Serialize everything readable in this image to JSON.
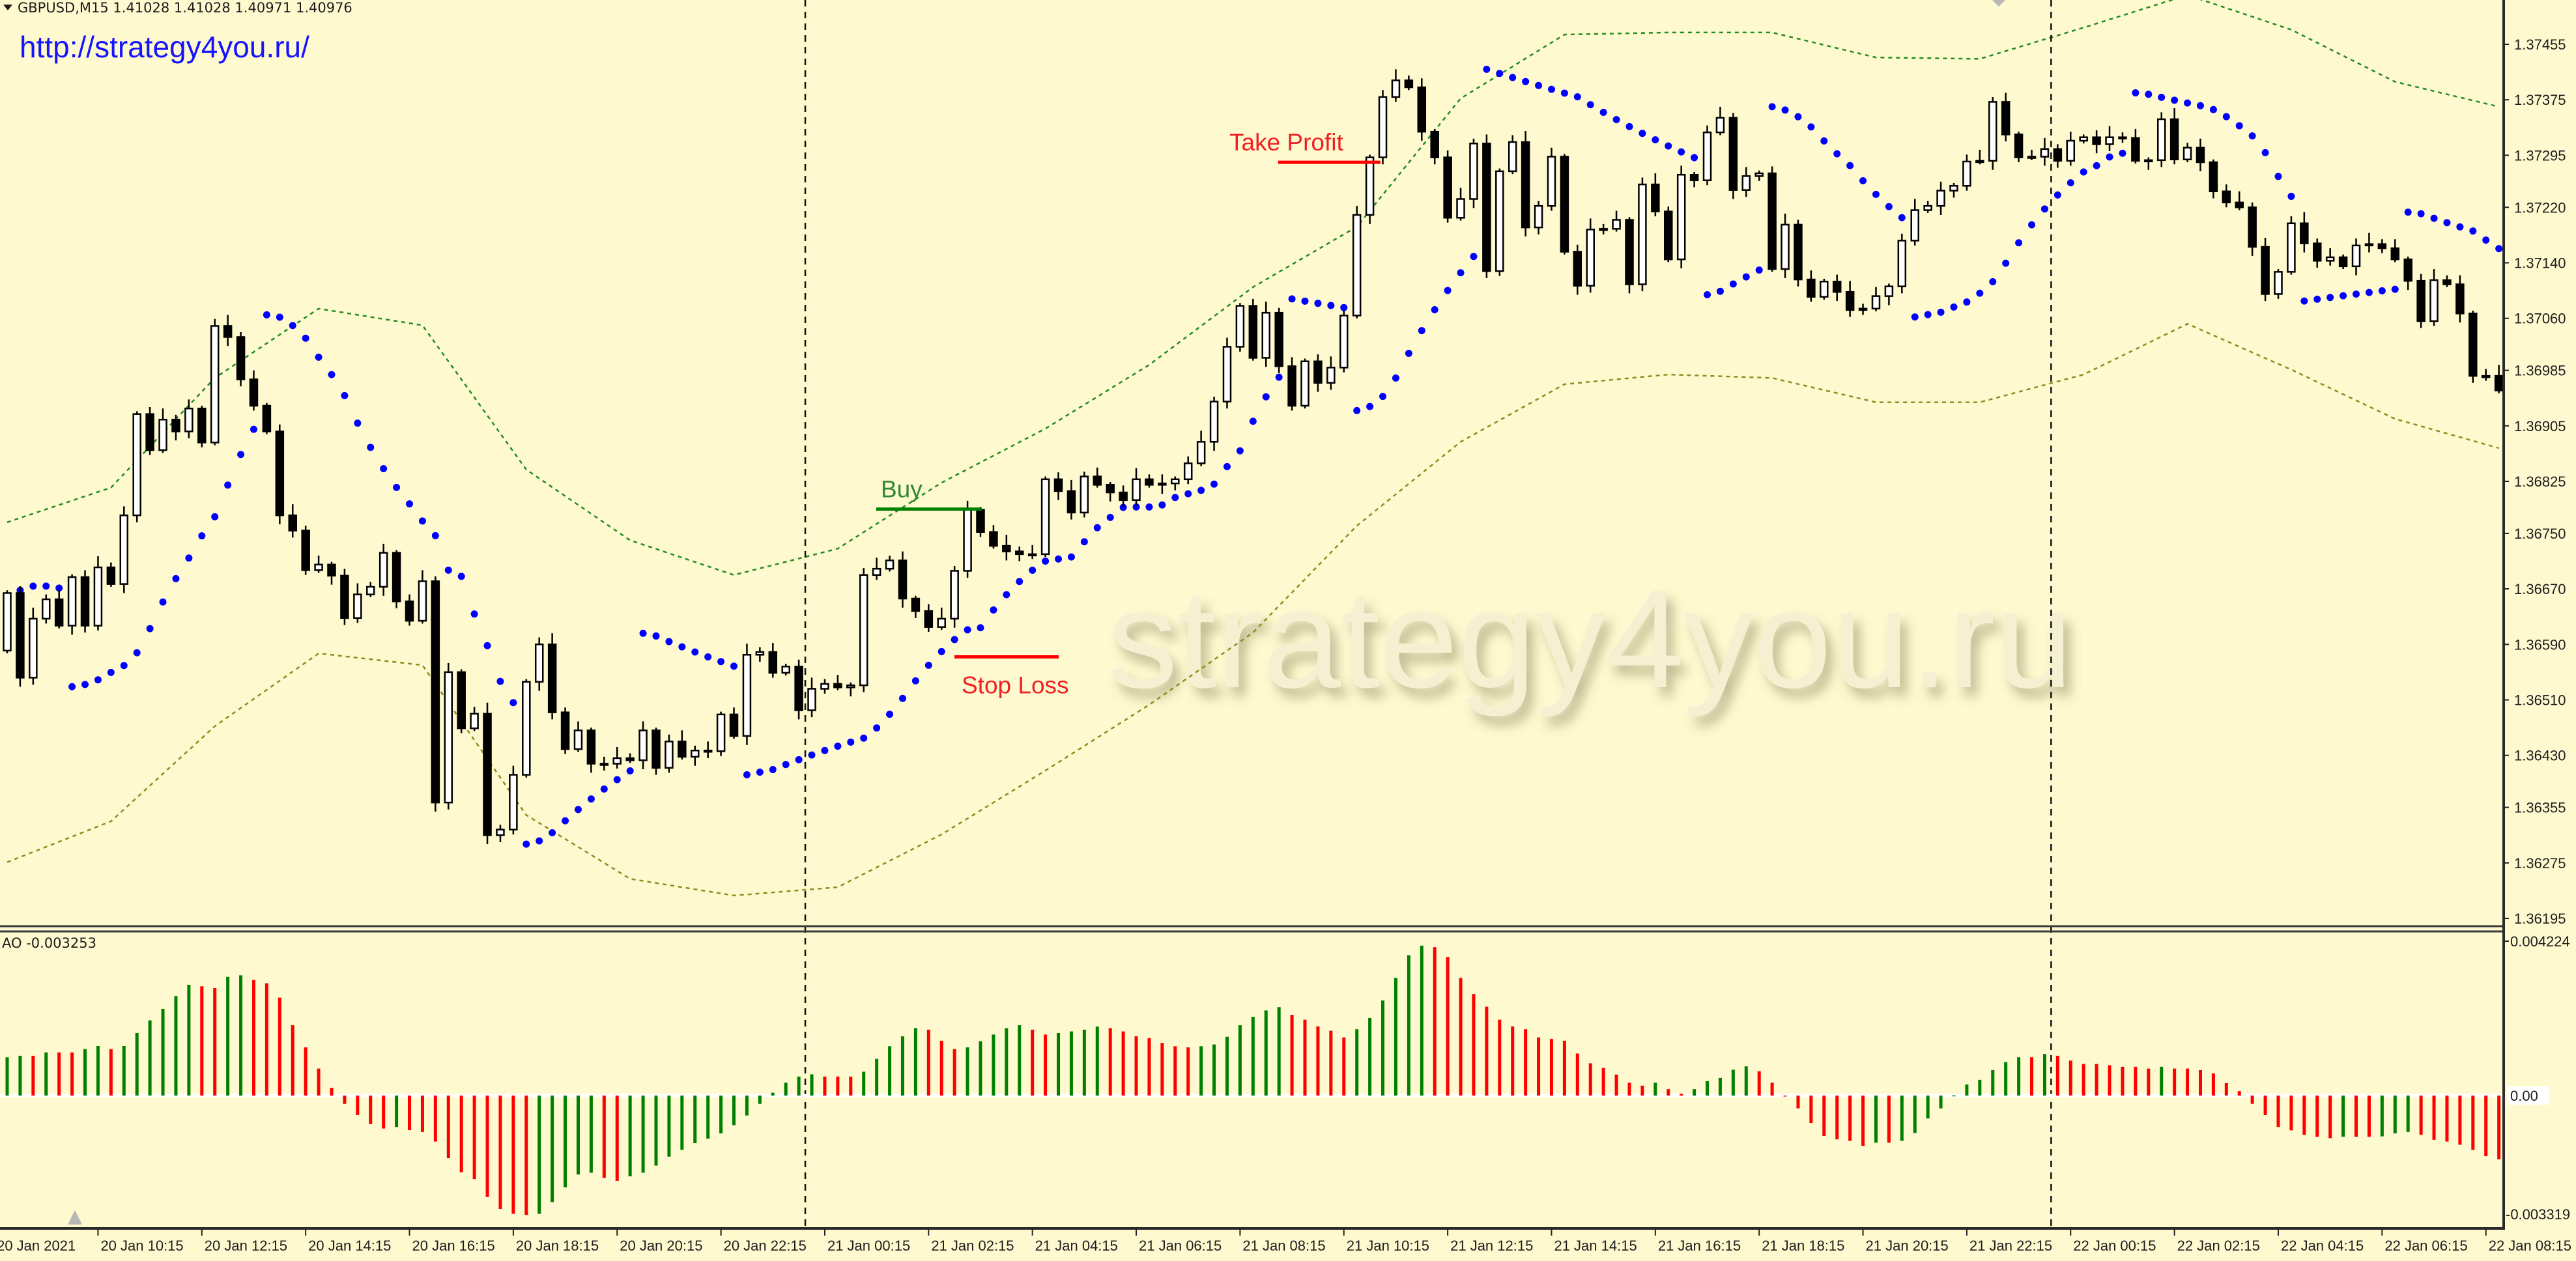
{
  "header": {
    "symbol_info": "GBPUSD,M15  1.41028 1.41028 1.40971 1.40976",
    "url": "http://strategy4you.ru/"
  },
  "watermark": "strategy4you.ru",
  "indicator_label": "AO -0.003253",
  "annotations": {
    "buy": {
      "label": "Buy",
      "price": 1.36785,
      "color": "#008000"
    },
    "stop_loss": {
      "label": "Stop Loss",
      "price": 1.36572,
      "color": "#ff0000"
    },
    "take_profit": {
      "label": "Take Profit",
      "price": 1.37285,
      "color": "#ff0000"
    }
  },
  "colors": {
    "background": "#fff9d0",
    "bull_body": "#ffffff",
    "bear_body": "#000000",
    "sar": "#0000ff",
    "upper_band": "#1e8c1e",
    "lower_band": "#8c8c1e",
    "ao_up": "#008000",
    "ao_down": "#ff0000"
  },
  "chart_data": [
    {
      "type": "candlestick",
      "symbol": "GBPUSD,M15",
      "ylim": [
        1.36195,
        1.37455
      ],
      "y_ticks": [
        "1.37455",
        "1.37375",
        "1.37295",
        "1.37220",
        "1.37140",
        "1.37060",
        "1.36985",
        "1.36905",
        "1.36825",
        "1.36750",
        "1.36670",
        "1.36590",
        "1.36510",
        "1.36430",
        "1.36355",
        "1.36275",
        "1.36195"
      ],
      "x_ticks": [
        "20 Jan 2021",
        "20 Jan 10:15",
        "20 Jan 12:15",
        "20 Jan 14:15",
        "20 Jan 16:15",
        "20 Jan 18:15",
        "20 Jan 20:15",
        "20 Jan 22:15",
        "21 Jan 00:15",
        "21 Jan 02:15",
        "21 Jan 04:15",
        "21 Jan 06:15",
        "21 Jan 08:15",
        "21 Jan 10:15",
        "21 Jan 12:15",
        "21 Jan 14:15",
        "21 Jan 16:15",
        "21 Jan 18:15",
        "21 Jan 20:15",
        "21 Jan 22:15",
        "22 Jan 00:15",
        "22 Jan 02:15",
        "22 Jan 04:15",
        "22 Jan 06:15",
        "22 Jan 08:15"
      ],
      "period_separator_bars": [
        62,
        158
      ],
      "first_open": 1.36581,
      "close": [
        1.36664,
        1.36542,
        1.36627,
        1.36655,
        1.36617,
        1.36687,
        1.36617,
        1.36701,
        1.36677,
        1.36776,
        1.36922,
        1.3687,
        1.36914,
        1.36897,
        1.3693,
        1.36881,
        1.37049,
        1.37033,
        1.36972,
        1.36934,
        1.36897,
        1.36776,
        1.36754,
        1.36697,
        1.36705,
        1.36689,
        1.36628,
        1.36662,
        1.36673,
        1.36722,
        1.36652,
        1.36624,
        1.36681,
        1.36362,
        1.3655,
        1.36469,
        1.3649,
        1.36315,
        1.36323,
        1.36402,
        1.36536,
        1.3659,
        1.36492,
        1.36439,
        1.36466,
        1.36418,
        1.36418,
        1.36426,
        1.36423,
        1.36466,
        1.36412,
        1.3645,
        1.36428,
        1.36437,
        1.36436,
        1.36489,
        1.36458,
        1.36575,
        1.36579,
        1.36549,
        1.36558,
        1.36495,
        1.36526,
        1.36533,
        1.36528,
        1.36531,
        1.3669,
        1.36699,
        1.36711,
        1.36656,
        1.36638,
        1.36615,
        1.36627,
        1.36696,
        1.36784,
        1.36752,
        1.36732,
        1.36724,
        1.3672,
        1.3672,
        1.36828,
        1.36811,
        1.3678,
        1.36832,
        1.3682,
        1.36809,
        1.36798,
        1.36828,
        1.3682,
        1.36822,
        1.36828,
        1.36851,
        1.36882,
        1.3694,
        1.37019,
        1.37078,
        1.37003,
        1.37068,
        1.36991,
        1.36934,
        1.36998,
        1.36967,
        1.36989,
        1.37064,
        1.37209,
        1.37292,
        1.37379,
        1.37403,
        1.37393,
        1.37329,
        1.37292,
        1.37205,
        1.37232,
        1.37312,
        1.37128,
        1.37272,
        1.37314,
        1.37191,
        1.37222,
        1.37293,
        1.37156,
        1.37107,
        1.37188,
        1.37189,
        1.37202,
        1.37109,
        1.37253,
        1.37214,
        1.37145,
        1.37267,
        1.37259,
        1.37328,
        1.37349,
        1.37245,
        1.37265,
        1.37269,
        1.37131,
        1.37195,
        1.37116,
        1.37091,
        1.37113,
        1.37098,
        1.37072,
        1.37074,
        1.37092,
        1.37106,
        1.37172,
        1.37216,
        1.37222,
        1.37244,
        1.37251,
        1.37286,
        1.37287,
        1.37372,
        1.37325,
        1.37292,
        1.37293,
        1.37304,
        1.37287,
        1.37316,
        1.37321,
        1.37311,
        1.37321,
        1.3732,
        1.37287,
        1.37288,
        1.37347,
        1.37289,
        1.37306,
        1.37285,
        1.37243,
        1.37227,
        1.3722,
        1.37163,
        1.37095,
        1.37127,
        1.37197,
        1.37168,
        1.37143,
        1.37148,
        1.37135,
        1.37165,
        1.37167,
        1.37161,
        1.37145,
        1.37114,
        1.37056,
        1.37115,
        1.37109,
        1.37067,
        1.36977,
        1.36977,
        1.36956
      ],
      "upper_band": [
        [
          0,
          1.36766
        ],
        [
          8,
          1.36816
        ],
        [
          16,
          1.36974
        ],
        [
          24,
          1.37074
        ],
        [
          32,
          1.3705
        ],
        [
          40,
          1.36842
        ],
        [
          48,
          1.3674
        ],
        [
          56,
          1.3669
        ],
        [
          64,
          1.36728
        ],
        [
          72,
          1.36823
        ],
        [
          80,
          1.36901
        ],
        [
          88,
          1.36993
        ],
        [
          96,
          1.37105
        ],
        [
          104,
          1.37192
        ],
        [
          112,
          1.37377
        ],
        [
          120,
          1.37469
        ],
        [
          128,
          1.37472
        ],
        [
          136,
          1.37472
        ],
        [
          144,
          1.37436
        ],
        [
          152,
          1.37434
        ],
        [
          160,
          1.37479
        ],
        [
          168,
          1.37526
        ],
        [
          176,
          1.37476
        ],
        [
          184,
          1.37401
        ],
        [
          192,
          1.37365
        ]
      ],
      "lower_band": [
        [
          0,
          1.36276
        ],
        [
          8,
          1.36335
        ],
        [
          16,
          1.36472
        ],
        [
          24,
          1.36577
        ],
        [
          32,
          1.3656
        ],
        [
          40,
          1.36344
        ],
        [
          48,
          1.36252
        ],
        [
          56,
          1.36228
        ],
        [
          64,
          1.3624
        ],
        [
          72,
          1.36316
        ],
        [
          80,
          1.36408
        ],
        [
          88,
          1.36503
        ],
        [
          96,
          1.36607
        ],
        [
          104,
          1.36761
        ],
        [
          112,
          1.36882
        ],
        [
          120,
          1.36965
        ],
        [
          128,
          1.36979
        ],
        [
          136,
          1.36974
        ],
        [
          144,
          1.36939
        ],
        [
          152,
          1.36939
        ],
        [
          160,
          1.36979
        ],
        [
          168,
          1.37052
        ],
        [
          176,
          1.36986
        ],
        [
          184,
          1.36915
        ],
        [
          192,
          1.36873
        ]
      ]
    },
    {
      "type": "bar",
      "indicator": "AO",
      "ylim": [
        -0.003319,
        0.004224
      ],
      "y_ticks": [
        "0.004224",
        "0.00",
        "-0.003319"
      ],
      "values": [
        0.001047,
        0.001089,
        0.001089,
        0.00118,
        0.00118,
        0.00118,
        0.001271,
        0.001355,
        0.001271,
        0.001355,
        0.001712,
        0.002057,
        0.002372,
        0.002723,
        0.003031,
        0.002989,
        0.00294,
        0.003249,
        0.003291,
        0.003164,
        0.003073,
        0.00268,
        0.001924,
        0.001319,
        0.000738,
        0.000212,
        -0.000224,
        -0.000526,
        -0.000768,
        -0.000889,
        -0.000847,
        -0.000932,
        -0.00098,
        -0.00124,
        -0.001688,
        -0.002069,
        -0.002251,
        -0.002735,
        -0.003055,
        -0.003188,
        -0.003219,
        -0.003188,
        -0.002874,
        -0.002474,
        -0.00213,
        -0.002081,
        -0.00222,
        -0.002299,
        -0.002178,
        -0.002081,
        -0.001888,
        -0.001646,
        -0.001464,
        -0.001283,
        -0.001162,
        -0.001022,
        -0.000799,
        -0.000538,
        -0.000224,
        7.9e-05,
        0.000351,
        0.00052,
        0.000581,
        0.00052,
        0.00052,
        0.00052,
        0.000653,
        0.001004,
        0.001349,
        0.001621,
        0.001845,
        0.001803,
        0.0015,
        0.001271,
        0.001319,
        0.001488,
        0.00167,
        0.001845,
        0.001924,
        0.001803,
        0.00167,
        0.001712,
        0.001755,
        0.001803,
        0.001888,
        0.001845,
        0.001755,
        0.001621,
        0.001573,
        0.00144,
        0.001349,
        0.001319,
        0.001349,
        0.001398,
        0.001609,
        0.001924,
        0.002154,
        0.002329,
        0.00242,
        0.002208,
        0.002075,
        0.001894,
        0.001773,
        0.001591,
        0.001815,
        0.002124,
        0.002602,
        0.003219,
        0.003842,
        0.004102,
        0.00406,
        0.003793,
        0.003219,
        0.002777,
        0.002432,
        0.002075,
        0.001894,
        0.001815,
        0.001591,
        0.001549,
        0.0015,
        0.00115,
        0.000883,
        0.000756,
        0.000575,
        0.000351,
        0.000272,
        0.000351,
        0.000175,
        4.8e-05,
        0.000175,
        0.000393,
        0.000484,
        0.000708,
        0.000799,
        0.000666,
        0.000351,
        -1e-05,
        -0.000345,
        -0.000738,
        -0.001089,
        -0.00118,
        -0.001222,
        -0.001355,
        -0.001271,
        -0.001271,
        -0.001222,
        -0.00101,
        -0.000617,
        -0.000345,
        5e-06,
        0.000303,
        0.00043,
        0.000696,
        0.000914,
        0.001047,
        0.001047,
        0.001137,
        0.001089,
        0.000956,
        0.000865,
        0.000865,
        0.000829,
        0.000787,
        0.000787,
        0.000738,
        0.000787,
        0.000738,
        0.000738,
        0.000696,
        0.000605,
        0.000339,
        0.000121,
        -0.000224,
        -0.000526,
        -0.000847,
        -0.000938,
        -0.001059,
        -0.001113,
        -0.00115,
        -0.001113,
        -0.001113,
        -0.001113,
        -0.001101,
        -0.001022,
        -0.00098,
        -0.001059,
        -0.001192,
        -0.00124,
        -0.001325,
        -0.001464,
        -0.001634,
        -0.001718
      ]
    }
  ]
}
